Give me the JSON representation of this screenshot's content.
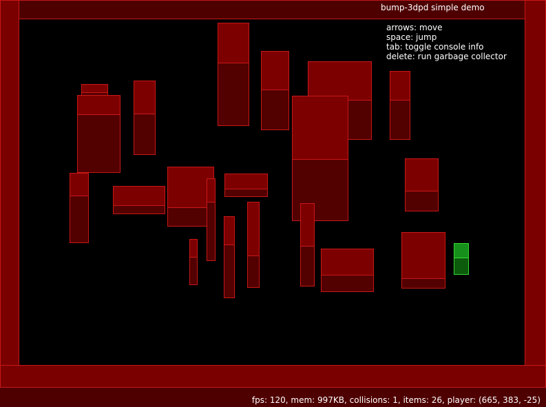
{
  "header": {
    "title": "bump-3dpd simple demo"
  },
  "instructions": [
    "arrows: move",
    "space: jump",
    "tab: toggle console info",
    "delete: run garbage collector"
  ],
  "status": {
    "text": "fps: 120, mem: 997KB, collisions: 1, items: 26, player: (665, 383, -25)"
  },
  "colors": {
    "block_face": "#7d0000",
    "block_side": "#520000",
    "block_edge": "#c81818",
    "player_face": "#16901a",
    "player_side": "#0c5a0c",
    "player_edge": "#36d836",
    "background": "#000000"
  }
}
